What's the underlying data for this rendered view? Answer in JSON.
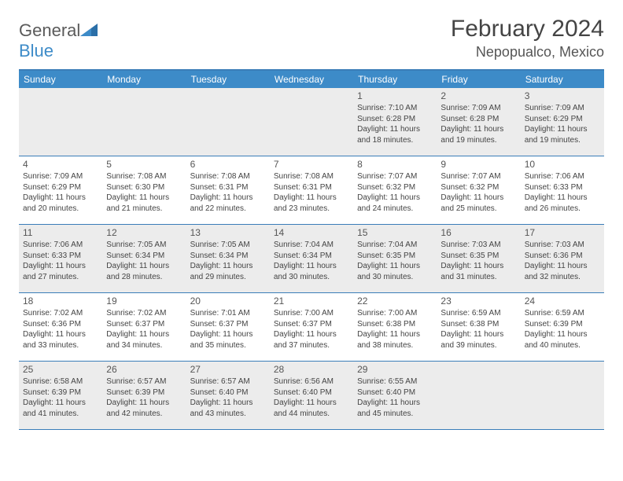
{
  "brand": {
    "text1": "General",
    "text2": "Blue",
    "color1": "#5a5a5a",
    "color2": "#3d8bc8"
  },
  "title": "February 2024",
  "location": "Nepopualco, Mexico",
  "colors": {
    "header_bg": "#3d8bc8",
    "header_text": "#ffffff",
    "border": "#3a7db8",
    "shaded_bg": "#ececec",
    "text": "#444444"
  },
  "day_names": [
    "Sunday",
    "Monday",
    "Tuesday",
    "Wednesday",
    "Thursday",
    "Friday",
    "Saturday"
  ],
  "weeks": [
    [
      {
        "num": "",
        "sunrise": "",
        "sunset": "",
        "daylight": ""
      },
      {
        "num": "",
        "sunrise": "",
        "sunset": "",
        "daylight": ""
      },
      {
        "num": "",
        "sunrise": "",
        "sunset": "",
        "daylight": ""
      },
      {
        "num": "",
        "sunrise": "",
        "sunset": "",
        "daylight": ""
      },
      {
        "num": "1",
        "sunrise": "Sunrise: 7:10 AM",
        "sunset": "Sunset: 6:28 PM",
        "daylight": "Daylight: 11 hours and 18 minutes."
      },
      {
        "num": "2",
        "sunrise": "Sunrise: 7:09 AM",
        "sunset": "Sunset: 6:28 PM",
        "daylight": "Daylight: 11 hours and 19 minutes."
      },
      {
        "num": "3",
        "sunrise": "Sunrise: 7:09 AM",
        "sunset": "Sunset: 6:29 PM",
        "daylight": "Daylight: 11 hours and 19 minutes."
      }
    ],
    [
      {
        "num": "4",
        "sunrise": "Sunrise: 7:09 AM",
        "sunset": "Sunset: 6:29 PM",
        "daylight": "Daylight: 11 hours and 20 minutes."
      },
      {
        "num": "5",
        "sunrise": "Sunrise: 7:08 AM",
        "sunset": "Sunset: 6:30 PM",
        "daylight": "Daylight: 11 hours and 21 minutes."
      },
      {
        "num": "6",
        "sunrise": "Sunrise: 7:08 AM",
        "sunset": "Sunset: 6:31 PM",
        "daylight": "Daylight: 11 hours and 22 minutes."
      },
      {
        "num": "7",
        "sunrise": "Sunrise: 7:08 AM",
        "sunset": "Sunset: 6:31 PM",
        "daylight": "Daylight: 11 hours and 23 minutes."
      },
      {
        "num": "8",
        "sunrise": "Sunrise: 7:07 AM",
        "sunset": "Sunset: 6:32 PM",
        "daylight": "Daylight: 11 hours and 24 minutes."
      },
      {
        "num": "9",
        "sunrise": "Sunrise: 7:07 AM",
        "sunset": "Sunset: 6:32 PM",
        "daylight": "Daylight: 11 hours and 25 minutes."
      },
      {
        "num": "10",
        "sunrise": "Sunrise: 7:06 AM",
        "sunset": "Sunset: 6:33 PM",
        "daylight": "Daylight: 11 hours and 26 minutes."
      }
    ],
    [
      {
        "num": "11",
        "sunrise": "Sunrise: 7:06 AM",
        "sunset": "Sunset: 6:33 PM",
        "daylight": "Daylight: 11 hours and 27 minutes."
      },
      {
        "num": "12",
        "sunrise": "Sunrise: 7:05 AM",
        "sunset": "Sunset: 6:34 PM",
        "daylight": "Daylight: 11 hours and 28 minutes."
      },
      {
        "num": "13",
        "sunrise": "Sunrise: 7:05 AM",
        "sunset": "Sunset: 6:34 PM",
        "daylight": "Daylight: 11 hours and 29 minutes."
      },
      {
        "num": "14",
        "sunrise": "Sunrise: 7:04 AM",
        "sunset": "Sunset: 6:34 PM",
        "daylight": "Daylight: 11 hours and 30 minutes."
      },
      {
        "num": "15",
        "sunrise": "Sunrise: 7:04 AM",
        "sunset": "Sunset: 6:35 PM",
        "daylight": "Daylight: 11 hours and 30 minutes."
      },
      {
        "num": "16",
        "sunrise": "Sunrise: 7:03 AM",
        "sunset": "Sunset: 6:35 PM",
        "daylight": "Daylight: 11 hours and 31 minutes."
      },
      {
        "num": "17",
        "sunrise": "Sunrise: 7:03 AM",
        "sunset": "Sunset: 6:36 PM",
        "daylight": "Daylight: 11 hours and 32 minutes."
      }
    ],
    [
      {
        "num": "18",
        "sunrise": "Sunrise: 7:02 AM",
        "sunset": "Sunset: 6:36 PM",
        "daylight": "Daylight: 11 hours and 33 minutes."
      },
      {
        "num": "19",
        "sunrise": "Sunrise: 7:02 AM",
        "sunset": "Sunset: 6:37 PM",
        "daylight": "Daylight: 11 hours and 34 minutes."
      },
      {
        "num": "20",
        "sunrise": "Sunrise: 7:01 AM",
        "sunset": "Sunset: 6:37 PM",
        "daylight": "Daylight: 11 hours and 35 minutes."
      },
      {
        "num": "21",
        "sunrise": "Sunrise: 7:00 AM",
        "sunset": "Sunset: 6:37 PM",
        "daylight": "Daylight: 11 hours and 37 minutes."
      },
      {
        "num": "22",
        "sunrise": "Sunrise: 7:00 AM",
        "sunset": "Sunset: 6:38 PM",
        "daylight": "Daylight: 11 hours and 38 minutes."
      },
      {
        "num": "23",
        "sunrise": "Sunrise: 6:59 AM",
        "sunset": "Sunset: 6:38 PM",
        "daylight": "Daylight: 11 hours and 39 minutes."
      },
      {
        "num": "24",
        "sunrise": "Sunrise: 6:59 AM",
        "sunset": "Sunset: 6:39 PM",
        "daylight": "Daylight: 11 hours and 40 minutes."
      }
    ],
    [
      {
        "num": "25",
        "sunrise": "Sunrise: 6:58 AM",
        "sunset": "Sunset: 6:39 PM",
        "daylight": "Daylight: 11 hours and 41 minutes."
      },
      {
        "num": "26",
        "sunrise": "Sunrise: 6:57 AM",
        "sunset": "Sunset: 6:39 PM",
        "daylight": "Daylight: 11 hours and 42 minutes."
      },
      {
        "num": "27",
        "sunrise": "Sunrise: 6:57 AM",
        "sunset": "Sunset: 6:40 PM",
        "daylight": "Daylight: 11 hours and 43 minutes."
      },
      {
        "num": "28",
        "sunrise": "Sunrise: 6:56 AM",
        "sunset": "Sunset: 6:40 PM",
        "daylight": "Daylight: 11 hours and 44 minutes."
      },
      {
        "num": "29",
        "sunrise": "Sunrise: 6:55 AM",
        "sunset": "Sunset: 6:40 PM",
        "daylight": "Daylight: 11 hours and 45 minutes."
      },
      {
        "num": "",
        "sunrise": "",
        "sunset": "",
        "daylight": ""
      },
      {
        "num": "",
        "sunrise": "",
        "sunset": "",
        "daylight": ""
      }
    ]
  ]
}
